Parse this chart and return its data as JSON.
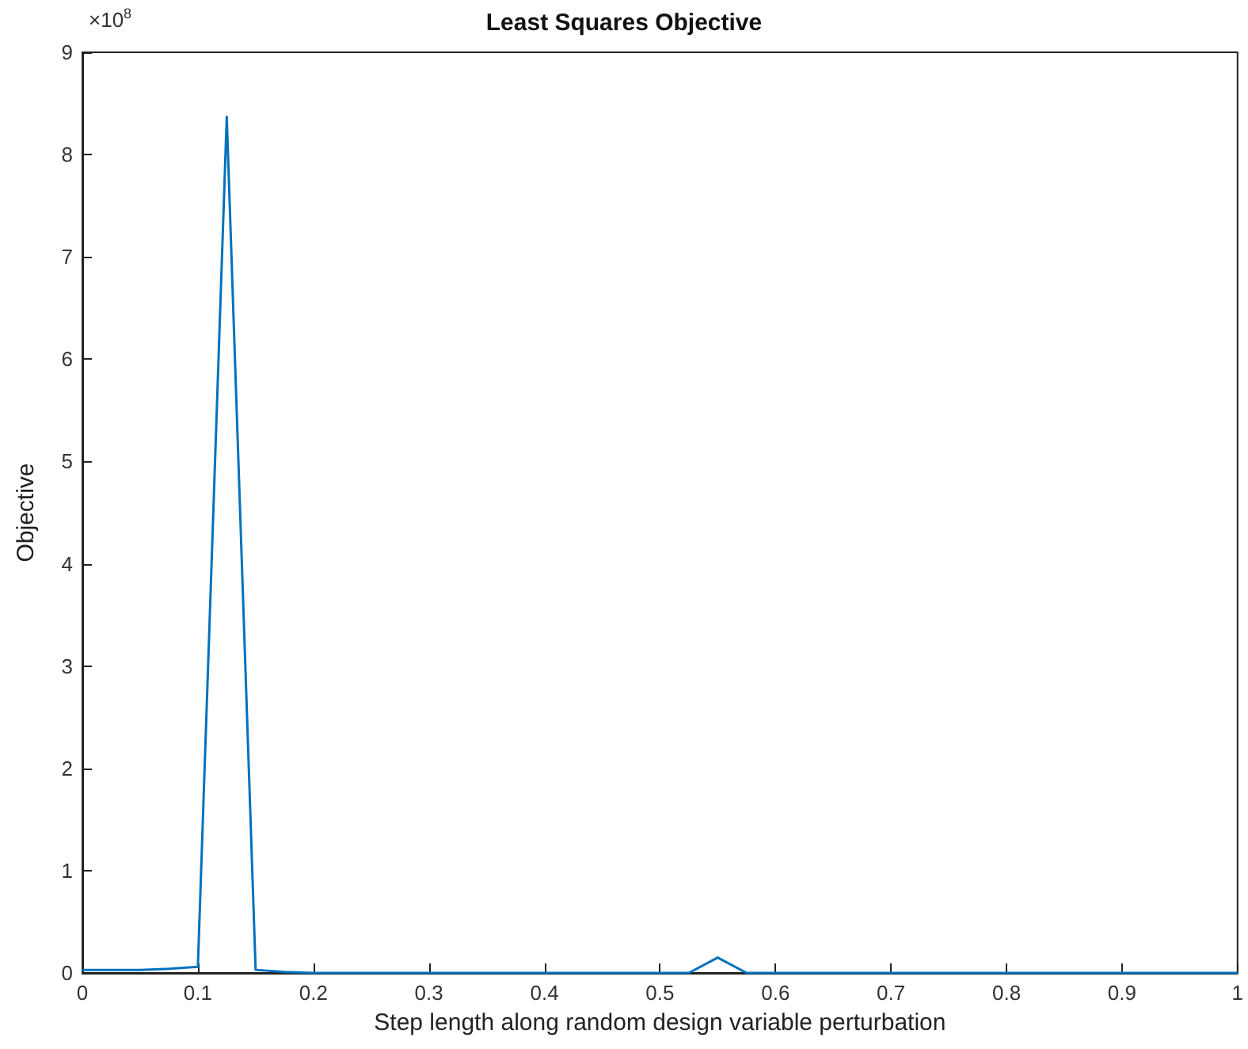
{
  "chart_data": {
    "type": "line",
    "title": "Least Squares Objective",
    "xlabel": "Step length along random design variable perturbation",
    "ylabel": "Objective",
    "annotations": [
      "×10$^{8}$"
    ],
    "x": [
      0,
      0.025,
      0.05,
      0.075,
      0.1,
      0.125,
      0.15,
      0.175,
      0.2,
      0.225,
      0.25,
      0.275,
      0.3,
      0.325,
      0.35,
      0.375,
      0.4,
      0.425,
      0.45,
      0.475,
      0.5,
      0.525,
      0.55,
      0.575,
      0.6,
      0.625,
      0.65,
      0.675,
      0.7,
      0.725,
      0.75,
      0.775,
      0.8,
      0.825,
      0.85,
      0.875,
      0.9,
      0.925,
      0.95,
      0.975,
      1
    ],
    "series": [
      {
        "color": "#0072bd",
        "values": [
          0.03,
          0.03,
          0.03,
          0.04,
          0.06,
          8.37,
          0.03,
          0.01,
          0,
          0,
          0,
          0,
          0,
          0,
          0,
          0,
          0,
          0,
          0,
          0,
          0,
          0,
          0.15,
          0,
          0,
          0,
          0,
          0,
          0,
          0,
          0,
          0,
          0,
          0,
          0,
          0,
          0,
          0,
          0,
          0,
          0
        ]
      }
    ],
    "xlim": [
      0,
      1
    ],
    "xticks": [
      0,
      0.1,
      0.2,
      0.3,
      0.4,
      0.5,
      0.6,
      0.7,
      0.8,
      0.9,
      1
    ],
    "ylim": [
      0,
      9
    ],
    "yticks": [
      0,
      1,
      2,
      3,
      4,
      5,
      6,
      7,
      8,
      9
    ],
    "grid": false,
    "marker": "none",
    "line_style": "solid"
  }
}
